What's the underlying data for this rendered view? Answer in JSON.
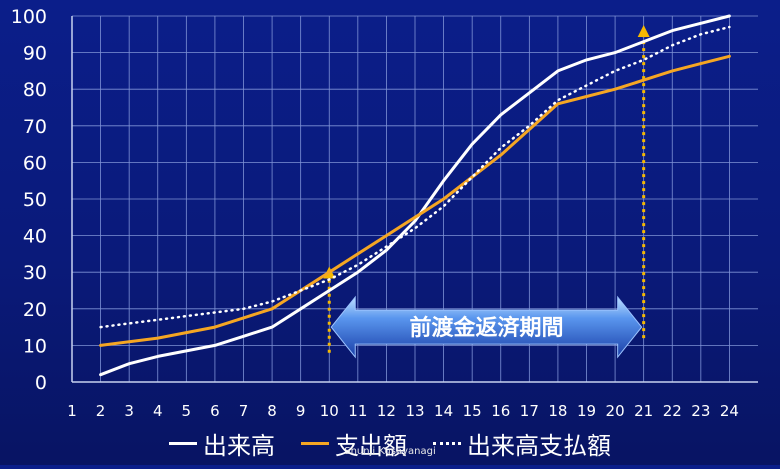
{
  "chart_data": {
    "type": "line",
    "x": [
      2,
      3,
      4,
      5,
      6,
      7,
      8,
      9,
      10,
      11,
      12,
      13,
      14,
      15,
      16,
      17,
      18,
      19,
      20,
      21,
      22,
      23,
      24
    ],
    "xtick_labels": [
      "1",
      "2",
      "3",
      "4",
      "5",
      "6",
      "7",
      "8",
      "9",
      "10",
      "11",
      "12",
      "13",
      "14",
      "15",
      "16",
      "17",
      "18",
      "19",
      "20",
      "21",
      "22",
      "23",
      "24"
    ],
    "xlim": [
      1,
      25
    ],
    "ytick_labels": [
      "0",
      "10",
      "20",
      "30",
      "40",
      "50",
      "60",
      "70",
      "80",
      "90",
      "100"
    ],
    "ylim": [
      0,
      100
    ],
    "grid": true,
    "legend_position": "bottom",
    "series": [
      {
        "name": "出来高",
        "color": "#ffffff",
        "style": "solid",
        "values": [
          2,
          5,
          7,
          8.5,
          10,
          12.5,
          15,
          20,
          25,
          30,
          36,
          44,
          55,
          65,
          73,
          79,
          85,
          88,
          90,
          93,
          96,
          98,
          100
        ]
      },
      {
        "name": "支出額",
        "color": "#f5a623",
        "style": "solid",
        "values": [
          10,
          11,
          12,
          13.5,
          15,
          17.5,
          20,
          25,
          30,
          35,
          40,
          45,
          50,
          56,
          62,
          69,
          76,
          78,
          80,
          82.5,
          85,
          87,
          89
        ]
      },
      {
        "name": "出来高支払額",
        "color": "#ffffff",
        "style": "dotted",
        "values": [
          15,
          16,
          17,
          18,
          19,
          20,
          22,
          25,
          28,
          32,
          37,
          42,
          48,
          56,
          64,
          70,
          77,
          81,
          85,
          88,
          92,
          95,
          97
        ]
      }
    ],
    "annotation": {
      "label": "前渡金返済期間",
      "start_x": 10,
      "end_x": 21,
      "arrow_start": {
        "x": 10,
        "y_from": 8,
        "y_to": 31
      },
      "arrow_end": {
        "x": 21,
        "y_from": 12,
        "y_to": 97
      }
    }
  },
  "credit_text": "Shunji Kusayanagi",
  "colors": {
    "background": "#0a1a7a",
    "arrow_fill": "#3b73d9",
    "highlight_arrow": "#f5b800"
  }
}
